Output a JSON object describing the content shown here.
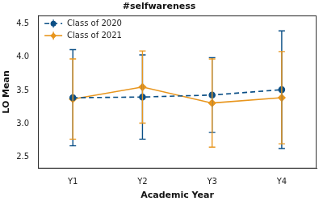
{
  "chart_data": {
    "type": "line",
    "title": "#selfwareness",
    "x_label": "Academic Year",
    "y_label": "LO Mean",
    "categories": [
      "Y1",
      "Y2",
      "Y3",
      "Y4"
    ],
    "series": [
      {
        "name": "Class of 2020",
        "color": "#0b4f86",
        "marker": "circle",
        "line_style": "dashed",
        "values": [
          3.39,
          3.4,
          3.43,
          3.51
        ],
        "errors": [
          0.72,
          0.63,
          0.56,
          0.88
        ]
      },
      {
        "name": "Class of 2021",
        "color": "#e8961e",
        "marker": "diamond",
        "line_style": "solid",
        "values": [
          3.37,
          3.55,
          3.31,
          3.39
        ],
        "errors": [
          0.6,
          0.54,
          0.66,
          0.69
        ]
      }
    ],
    "ylim": [
      2.33,
      4.62
    ],
    "yticks": [
      2.5,
      {
        "value": 3,
        "label": "3.0"
      },
      3.5,
      {
        "value": 4,
        "label": "4.0"
      },
      4.5
    ],
    "grid": false,
    "legend": "upper left"
  }
}
